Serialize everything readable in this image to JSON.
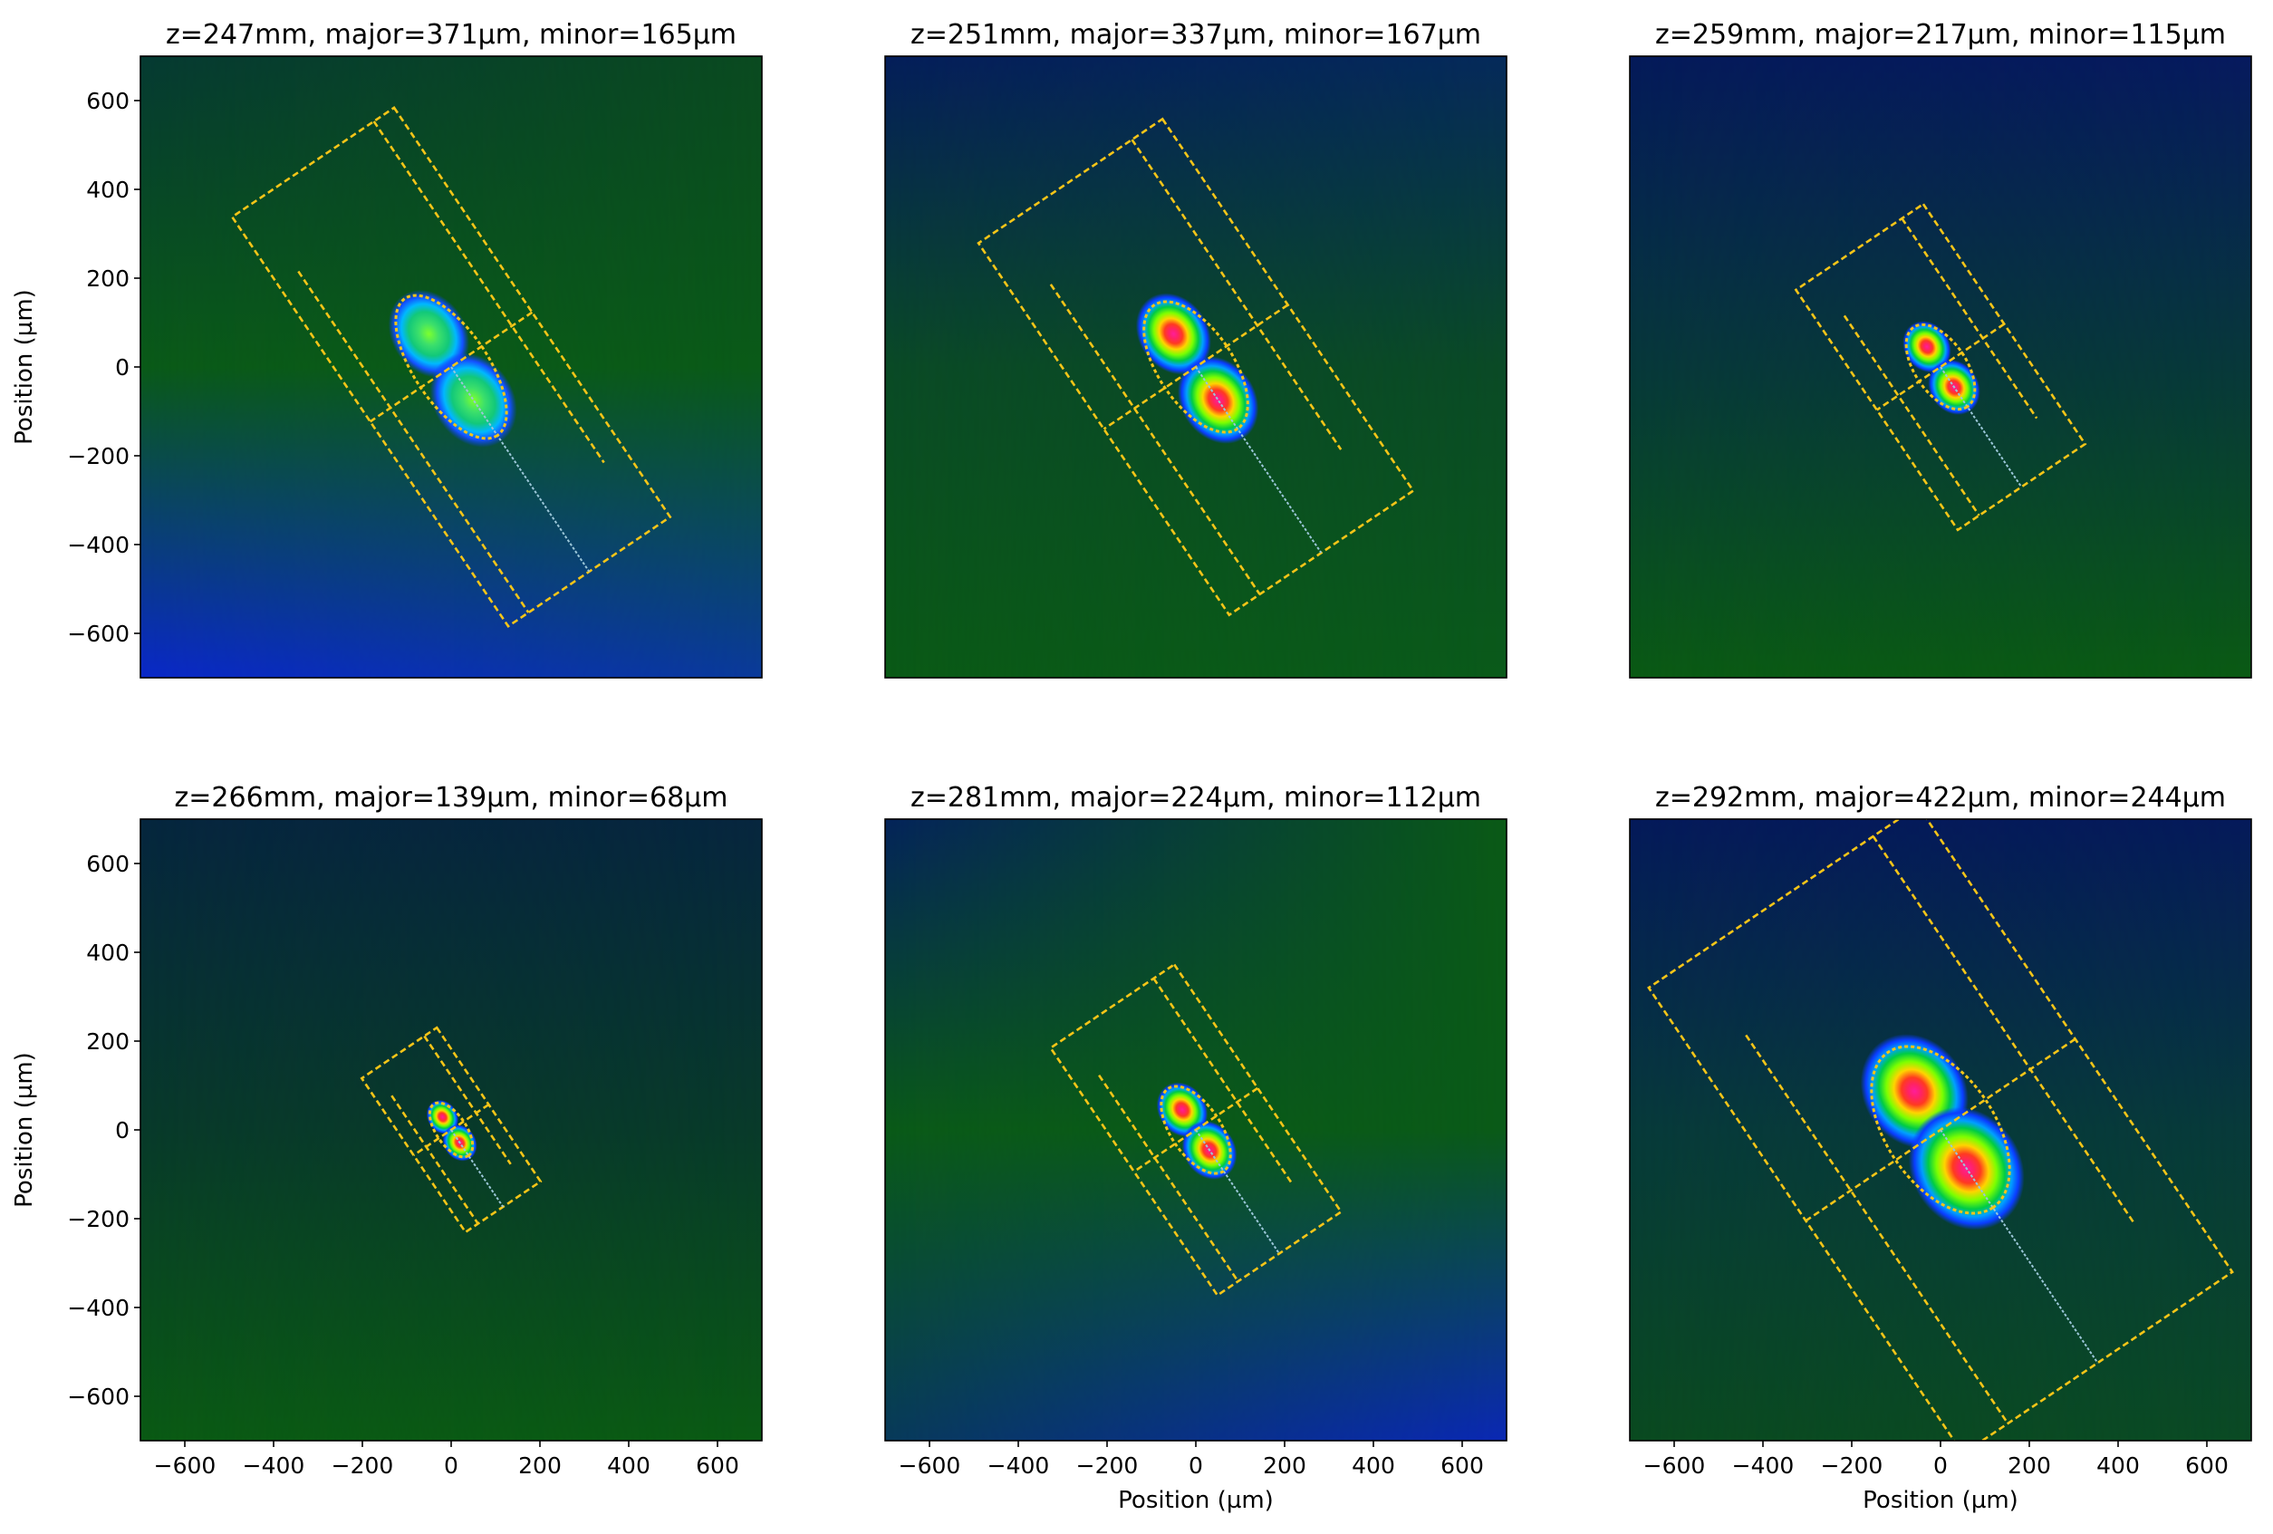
{
  "chart_data": [
    {
      "type": "heatmap",
      "title": "z=247mm, major=371µm, minor=165µm",
      "xlabel": "",
      "ylabel": "Position (µm)",
      "xlim": [
        -700,
        700
      ],
      "ylim": [
        700,
        -700
      ],
      "x_ticks": [],
      "y_ticks": [
        -600,
        -400,
        -200,
        0,
        200,
        400,
        600
      ],
      "background": {
        "top_left": "#063a32",
        "top_right": "#0a4a20",
        "middle": "#0a5a18",
        "bottom_left": "#0a28c8",
        "bottom_right": "#0a3a9a"
      },
      "beam": {
        "center": [
          0,
          0
        ],
        "angle_deg": 56,
        "lobe_offset": 90,
        "lobe_radius": [
          62,
          78
        ],
        "peak": "green",
        "ellipse_semi_axes": [
          186,
          83
        ]
      },
      "boxes": {
        "outer": {
          "center": [
            0,
            0
          ],
          "half_lengths": [
            556,
            220
          ]
        },
        "inner": {
          "center": [
            0,
            0
          ],
          "half_lengths": [
            371,
            165
          ]
        }
      }
    },
    {
      "type": "heatmap",
      "title": "z=251mm, major=337µm, minor=167µm",
      "xlabel": "",
      "ylabel": "",
      "xlim": [
        -700,
        700
      ],
      "ylim": [
        700,
        -700
      ],
      "x_ticks": [],
      "y_ticks": [],
      "background": {
        "top_left": "#051e5a",
        "top_right": "#052a5a",
        "middle": "#0a4a26",
        "bottom_left": "#0a5a16",
        "bottom_right": "#0a5a1a"
      },
      "beam": {
        "center": [
          0,
          0
        ],
        "angle_deg": 56,
        "lobe_offset": 90,
        "lobe_radius": [
          58,
          72
        ],
        "peak": "red",
        "ellipse_semi_axes": [
          168,
          84
        ]
      },
      "boxes": {
        "outer": {
          "center": [
            0,
            0
          ],
          "half_lengths": [
            505,
            250
          ]
        },
        "inner": {
          "center": [
            0,
            0
          ],
          "half_lengths": [
            337,
            167
          ]
        }
      }
    },
    {
      "type": "heatmap",
      "title": "z=259mm, major=217µm, minor=115µm",
      "xlabel": "",
      "ylabel": "",
      "xlim": [
        -700,
        700
      ],
      "ylim": [
        700,
        -700
      ],
      "x_ticks": [],
      "y_ticks": [],
      "background": {
        "top_left": "#051a5a",
        "top_right": "#061a5e",
        "middle": "#07383a",
        "bottom_left": "#0a5a14",
        "bottom_right": "#0a5a14"
      },
      "beam": {
        "center": [
          0,
          0
        ],
        "angle_deg": 56,
        "lobe_offset": 55,
        "lobe_radius": [
          38,
          45
        ],
        "peak": "red",
        "ellipse_semi_axes": [
          108,
          58
        ]
      },
      "boxes": {
        "outer": {
          "center": [
            0,
            0
          ],
          "half_lengths": [
            326,
            173
          ]
        },
        "inner": {
          "center": [
            0,
            0
          ],
          "half_lengths": [
            217,
            115
          ]
        }
      }
    },
    {
      "type": "heatmap",
      "title": "z=266mm, major=139µm, minor=68µm",
      "xlabel": "",
      "ylabel": "Position (µm)",
      "xlim": [
        -700,
        700
      ],
      "ylim": [
        700,
        -700
      ],
      "x_ticks": [
        -600,
        -400,
        -200,
        0,
        200,
        400,
        600
      ],
      "y_ticks": [
        -600,
        -400,
        -200,
        0,
        200,
        400,
        600
      ],
      "background": {
        "top_left": "#06263e",
        "top_right": "#06263e",
        "middle": "#083a2a",
        "bottom_left": "#0a5a14",
        "bottom_right": "#0a5a14"
      },
      "beam": {
        "center": [
          0,
          0
        ],
        "angle_deg": 56,
        "lobe_offset": 35,
        "lobe_radius": [
          25,
          30
        ],
        "peak": "red",
        "ellipse_semi_axes": [
          70,
          34
        ]
      },
      "boxes": {
        "outer": {
          "center": [
            0,
            0
          ],
          "half_lengths": [
            209,
            102
          ]
        },
        "inner": {
          "center": [
            0,
            0
          ],
          "half_lengths": [
            139,
            68
          ]
        }
      }
    },
    {
      "type": "heatmap",
      "title": "z=281mm, major=224µm, minor=112µm",
      "xlabel": "Position (µm)",
      "ylabel": "",
      "xlim": [
        -700,
        700
      ],
      "ylim": [
        700,
        -700
      ],
      "x_ticks": [
        -600,
        -400,
        -200,
        0,
        200,
        400,
        600
      ],
      "y_ticks": [],
      "background": {
        "top_left": "#05245a",
        "top_right": "#0a5a16",
        "middle": "#0a5a18",
        "bottom_left": "#083a5a",
        "bottom_right": "#0a28b4"
      },
      "beam": {
        "center": [
          0,
          0
        ],
        "angle_deg": 56,
        "lobe_offset": 55,
        "lobe_radius": [
          40,
          48
        ],
        "peak": "red",
        "ellipse_semi_axes": [
          112,
          56
        ]
      },
      "boxes": {
        "outer": {
          "center": [
            0,
            0
          ],
          "half_lengths": [
            336,
            168
          ]
        },
        "inner": {
          "center": [
            0,
            0
          ],
          "half_lengths": [
            224,
            112
          ]
        }
      }
    },
    {
      "type": "heatmap",
      "title": "z=292mm, major=422µm, minor=244µm",
      "xlabel": "Position (µm)",
      "ylabel": "",
      "xlim": [
        -700,
        700
      ],
      "ylim": [
        700,
        -700
      ],
      "x_ticks": [
        -600,
        -400,
        -200,
        0,
        200,
        400,
        600
      ],
      "y_ticks": [],
      "background": {
        "top_left": "#051a5a",
        "top_right": "#051a5a",
        "middle": "#073a3a",
        "bottom_left": "#0a4a20",
        "bottom_right": "#0a4a24"
      },
      "beam": {
        "center": [
          0,
          0
        ],
        "angle_deg": 56,
        "lobe_offset": 105,
        "lobe_radius": [
          85,
          100
        ],
        "peak": "red",
        "ellipse_semi_axes": [
          211,
          122
        ]
      },
      "boxes": {
        "outer": {
          "center": [
            0,
            0
          ],
          "half_lengths": [
            633,
            366
          ]
        },
        "inner": {
          "center": [
            0,
            0
          ],
          "half_lengths": [
            422,
            244
          ]
        }
      }
    }
  ]
}
